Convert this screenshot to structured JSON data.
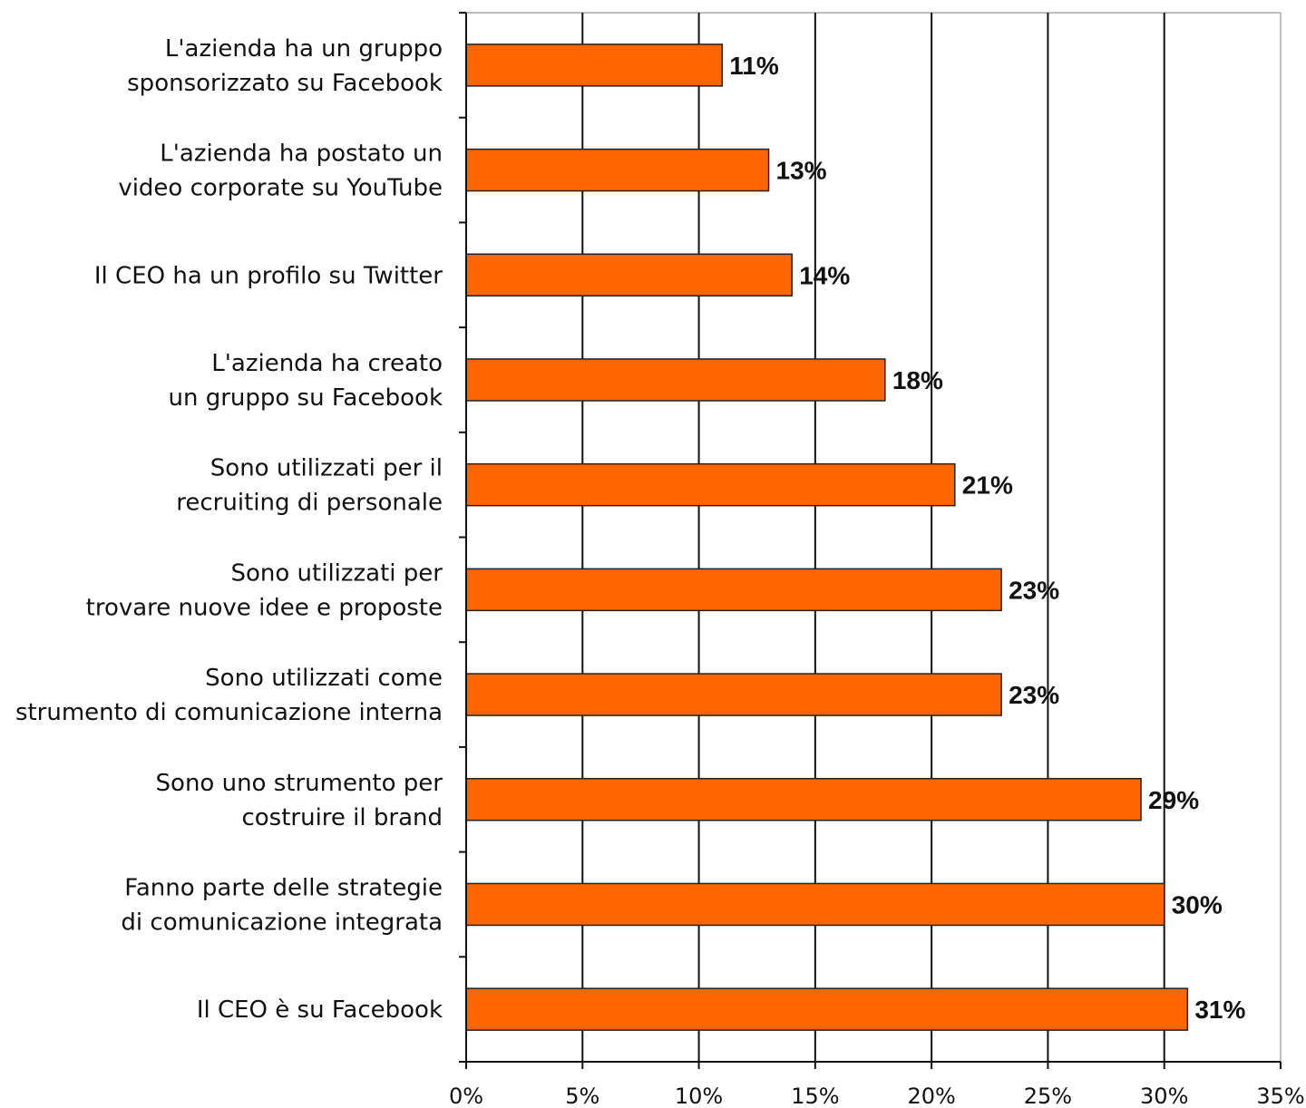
{
  "chart_data": {
    "type": "bar",
    "orientation": "horizontal",
    "categories": [
      [
        "L'azienda ha un gruppo",
        "sponsorizzato su Facebook"
      ],
      [
        "L'azienda ha postato un",
        "video corporate su YouTube"
      ],
      [
        "Il CEO ha un profilo su Twitter"
      ],
      [
        "L'azienda ha creato",
        "un gruppo su Facebook"
      ],
      [
        "Sono utilizzati per il",
        "recruiting di personale"
      ],
      [
        "Sono utilizzati per",
        "trovare nuove idee e proposte"
      ],
      [
        "Sono utilizzati come",
        "strumento di comunicazione interna"
      ],
      [
        "Sono uno strumento per",
        "costruire il brand"
      ],
      [
        "Fanno parte delle strategie",
        "di comunicazione integrata"
      ],
      [
        "Il CEO è su Facebook"
      ]
    ],
    "values": [
      11,
      13,
      14,
      18,
      21,
      23,
      23,
      29,
      30,
      31
    ],
    "data_labels": [
      "11%",
      "13%",
      "14%",
      "18%",
      "21%",
      "23%",
      "23%",
      "29%",
      "30%",
      "31%"
    ],
    "x_ticks": [
      0,
      5,
      10,
      15,
      20,
      25,
      30,
      35
    ],
    "x_tick_labels": [
      "0%",
      "5%",
      "10%",
      "15%",
      "20%",
      "25%",
      "30%",
      "35%"
    ],
    "xlim": [
      0,
      35
    ],
    "grid": "vertical",
    "legend": "none",
    "title": "",
    "xlabel": "",
    "ylabel": "",
    "colors": {
      "bar_fill": "#ff6600",
      "bar_stroke": "#222222",
      "grid": "#111111",
      "axis": "#111111"
    }
  }
}
